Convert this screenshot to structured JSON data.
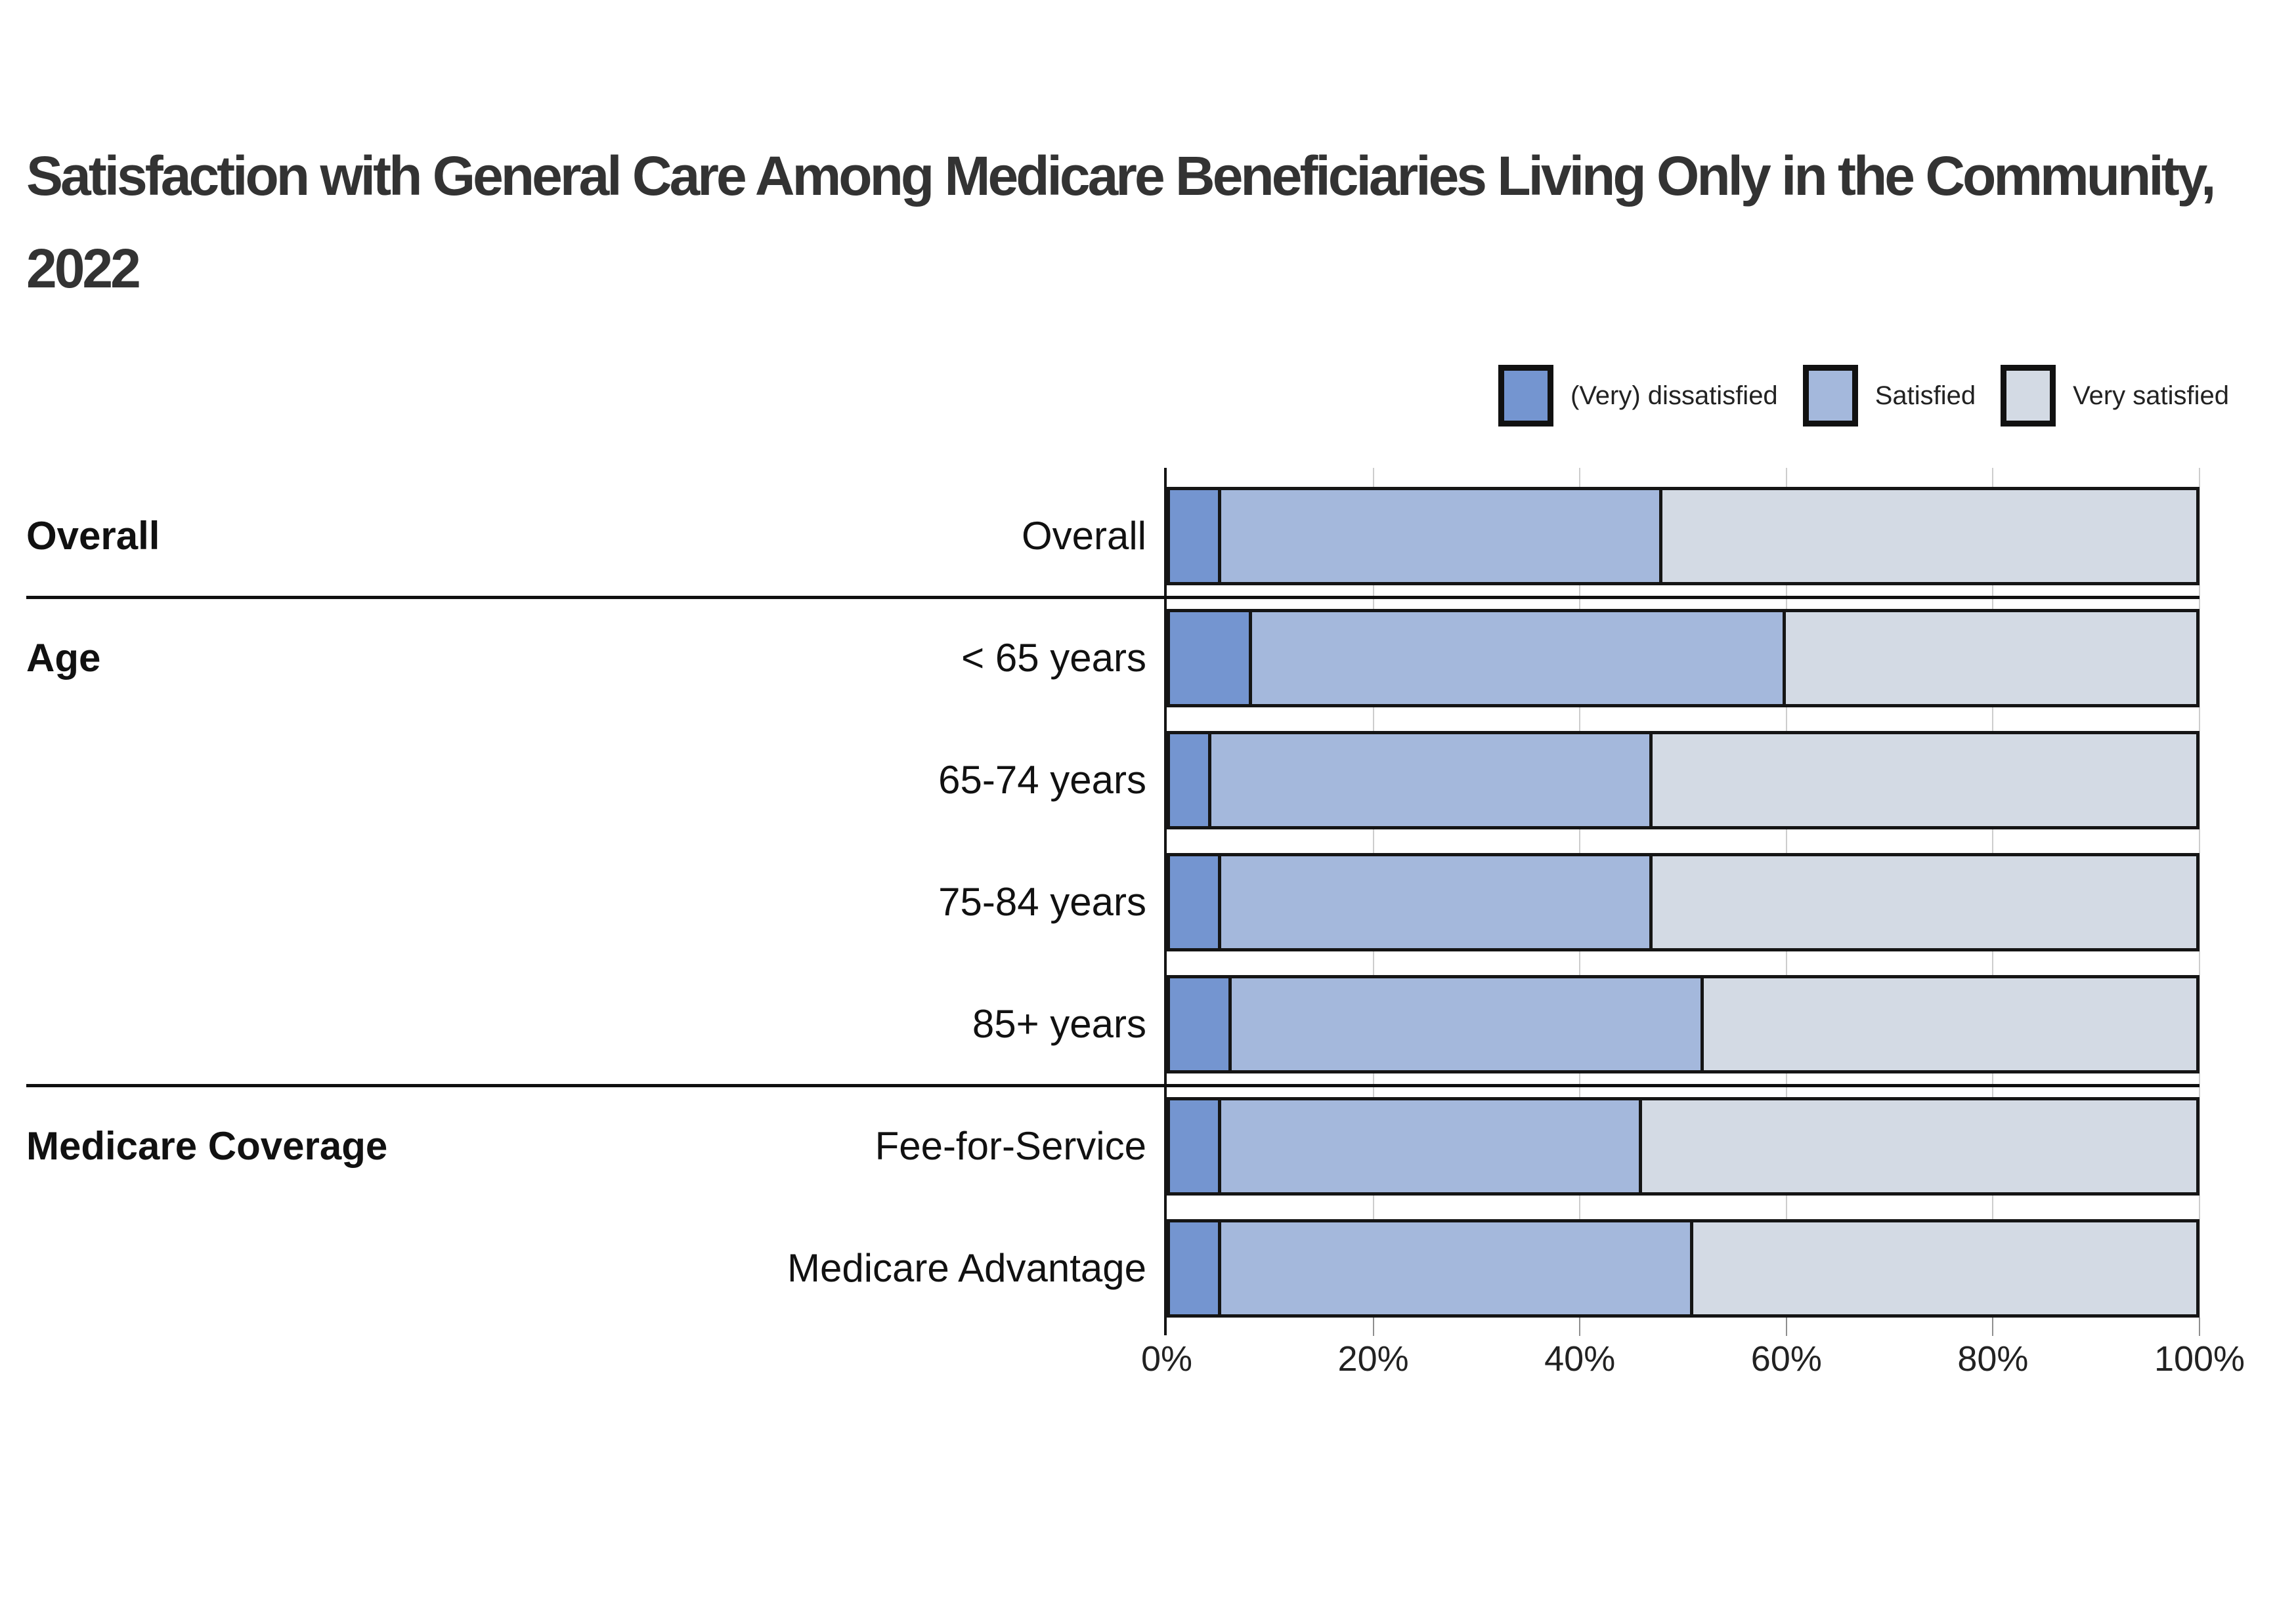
{
  "title": "Satisfaction with General Care Among Medicare Beneficiaries Living Only in the Community, 2022",
  "legend": [
    {
      "key": "dissatisfied",
      "label": "(Very) dissatisfied",
      "color": "#7495D0"
    },
    {
      "key": "satisfied",
      "label": "Satisfied",
      "color": "#A4B8DC"
    },
    {
      "key": "very-satisfied",
      "label": "Very satisfied",
      "color": "#D3DAE4"
    }
  ],
  "chart_data": {
    "type": "bar",
    "orientation": "horizontal",
    "stacked": true,
    "grid": "vertical-lines",
    "legend_position": "top-right",
    "title": "Satisfaction with General Care Among Medicare Beneficiaries Living Only in the Community, 2022",
    "xlabel": "",
    "ylabel": "",
    "x_axis": {
      "range": [
        0,
        100
      ],
      "unit": "%",
      "tick_labels": [
        "0%",
        "20%",
        "40%",
        "60%",
        "80%",
        "100%"
      ],
      "tick_values": [
        0,
        20,
        40,
        60,
        80,
        100
      ]
    },
    "categories": [
      "Overall",
      "< 65 years",
      "65-74 years",
      "75-84 years",
      "85+ years",
      "Fee-for-Service",
      "Medicare Advantage"
    ],
    "groups": [
      {
        "label": "Overall",
        "first_row": 0,
        "rows": [
          0
        ]
      },
      {
        "label": "Age",
        "first_row": 1,
        "rows": [
          1,
          2,
          3,
          4
        ]
      },
      {
        "label": "Medicare Coverage",
        "first_row": 5,
        "rows": [
          5,
          6
        ]
      }
    ],
    "series": [
      {
        "name": "(Very) dissatisfied",
        "key": "dissatisfied",
        "color": "#7495D0",
        "values": [
          5,
          8,
          4,
          5,
          6,
          5,
          5
        ]
      },
      {
        "name": "Satisfied",
        "key": "satisfied",
        "color": "#A4B8DC",
        "values": [
          43,
          52,
          43,
          42,
          46,
          41,
          46
        ]
      },
      {
        "name": "Very satisfied",
        "key": "very-satisfied",
        "color": "#D3DAE4",
        "values": [
          52,
          40,
          53,
          53,
          48,
          54,
          49
        ]
      }
    ]
  }
}
